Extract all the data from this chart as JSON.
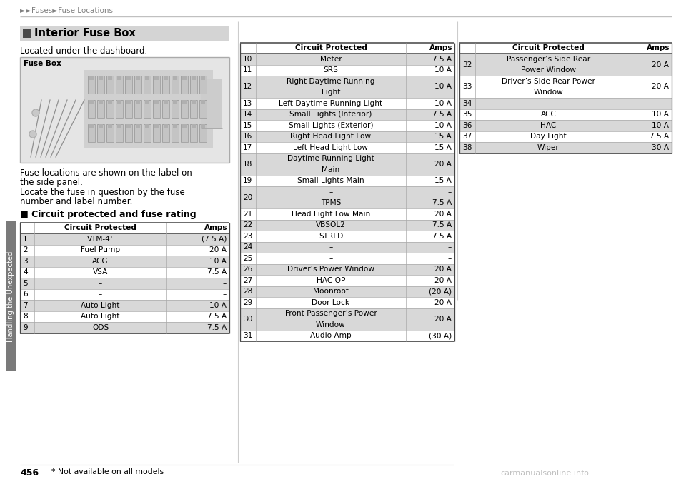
{
  "page_number": "456",
  "breadcrumb": "►►Fuses►Fuse Locations",
  "section_title": "Interior Fuse Box",
  "section_title_bg": "#d4d4d4",
  "text1": "Located under the dashboard.",
  "fuse_box_label": "Fuse Box",
  "text2_lines": [
    "Fuse locations are shown on the label on",
    "the side panel.",
    "Locate the fuse in question by the fuse",
    "number and label number."
  ],
  "subsection_title": "■ Circuit protected and fuse rating",
  "sidebar_text": "Handling the Unexpected",
  "sidebar_bg": "#7a7a7a",
  "footer_note": "* Not available on all models",
  "table1_headers": [
    "",
    "Circuit Protected",
    "Amps"
  ],
  "table1_rows": [
    [
      "1",
      "VTM-4¹",
      "(7.5 A)"
    ],
    [
      "2",
      "Fuel Pump",
      "20 A"
    ],
    [
      "3",
      "ACG",
      "10 A"
    ],
    [
      "4",
      "VSA",
      "7.5 A"
    ],
    [
      "5",
      "–",
      "–"
    ],
    [
      "6",
      "–",
      "–"
    ],
    [
      "7",
      "Auto Light",
      "10 A"
    ],
    [
      "8",
      "Auto Light",
      "7.5 A"
    ],
    [
      "9",
      "ODS",
      "7.5 A"
    ]
  ],
  "table1_shaded": [
    0,
    2,
    4,
    6,
    8
  ],
  "table2_headers": [
    "",
    "Circuit Protected",
    "Amps"
  ],
  "table2_rows": [
    [
      "10",
      "Meter",
      "7.5 A"
    ],
    [
      "11",
      "SRS",
      "10 A"
    ],
    [
      "12",
      "Right Daytime Running\nLight",
      "10 A"
    ],
    [
      "13",
      "Left Daytime Running Light",
      "10 A"
    ],
    [
      "14",
      "Small Lights (Interior)",
      "7.5 A"
    ],
    [
      "15",
      "Small Lights (Exterior)",
      "10 A"
    ],
    [
      "16",
      "Right Head Light Low",
      "15 A"
    ],
    [
      "17",
      "Left Head Light Low",
      "15 A"
    ],
    [
      "18",
      "Daytime Running Light\nMain",
      "20 A"
    ],
    [
      "19",
      "Small Lights Main",
      "15 A"
    ],
    [
      "20",
      "–\nTPMS",
      "–\n7.5 A"
    ],
    [
      "21",
      "Head Light Low Main",
      "20 A"
    ],
    [
      "22",
      "VBSOL2",
      "7.5 A"
    ],
    [
      "23",
      "STRLD",
      "7.5 A"
    ],
    [
      "24",
      "–",
      "–"
    ],
    [
      "25",
      "–",
      "–"
    ],
    [
      "26",
      "Driver’s Power Window",
      "20 A"
    ],
    [
      "27",
      "HAC OP",
      "20 A"
    ],
    [
      "28",
      "Moonroof",
      "(20 A)"
    ],
    [
      "29",
      "Door Lock",
      "20 A"
    ],
    [
      "30",
      "Front Passenger’s Power\nWindow",
      "20 A"
    ],
    [
      "31",
      "Audio Amp",
      "(30 A)"
    ]
  ],
  "table2_shaded": [
    0,
    2,
    4,
    6,
    8,
    10,
    12,
    14,
    16,
    18,
    20
  ],
  "table3_headers": [
    "",
    "Circuit Protected",
    "Amps"
  ],
  "table3_rows": [
    [
      "32",
      "Passenger’s Side Rear\nPower Window",
      "20 A"
    ],
    [
      "33",
      "Driver’s Side Rear Power\nWindow",
      "20 A"
    ],
    [
      "34",
      "–",
      "–"
    ],
    [
      "35",
      "ACC",
      "10 A"
    ],
    [
      "36",
      "HAC",
      "10 A"
    ],
    [
      "37",
      "Day Light",
      "7.5 A"
    ],
    [
      "38",
      "Wiper",
      "30 A"
    ]
  ],
  "table3_shaded": [
    0,
    2,
    4,
    6
  ],
  "row_bg_shaded": "#d8d8d8",
  "row_bg_white": "#ffffff",
  "bg_color": "#ffffff"
}
